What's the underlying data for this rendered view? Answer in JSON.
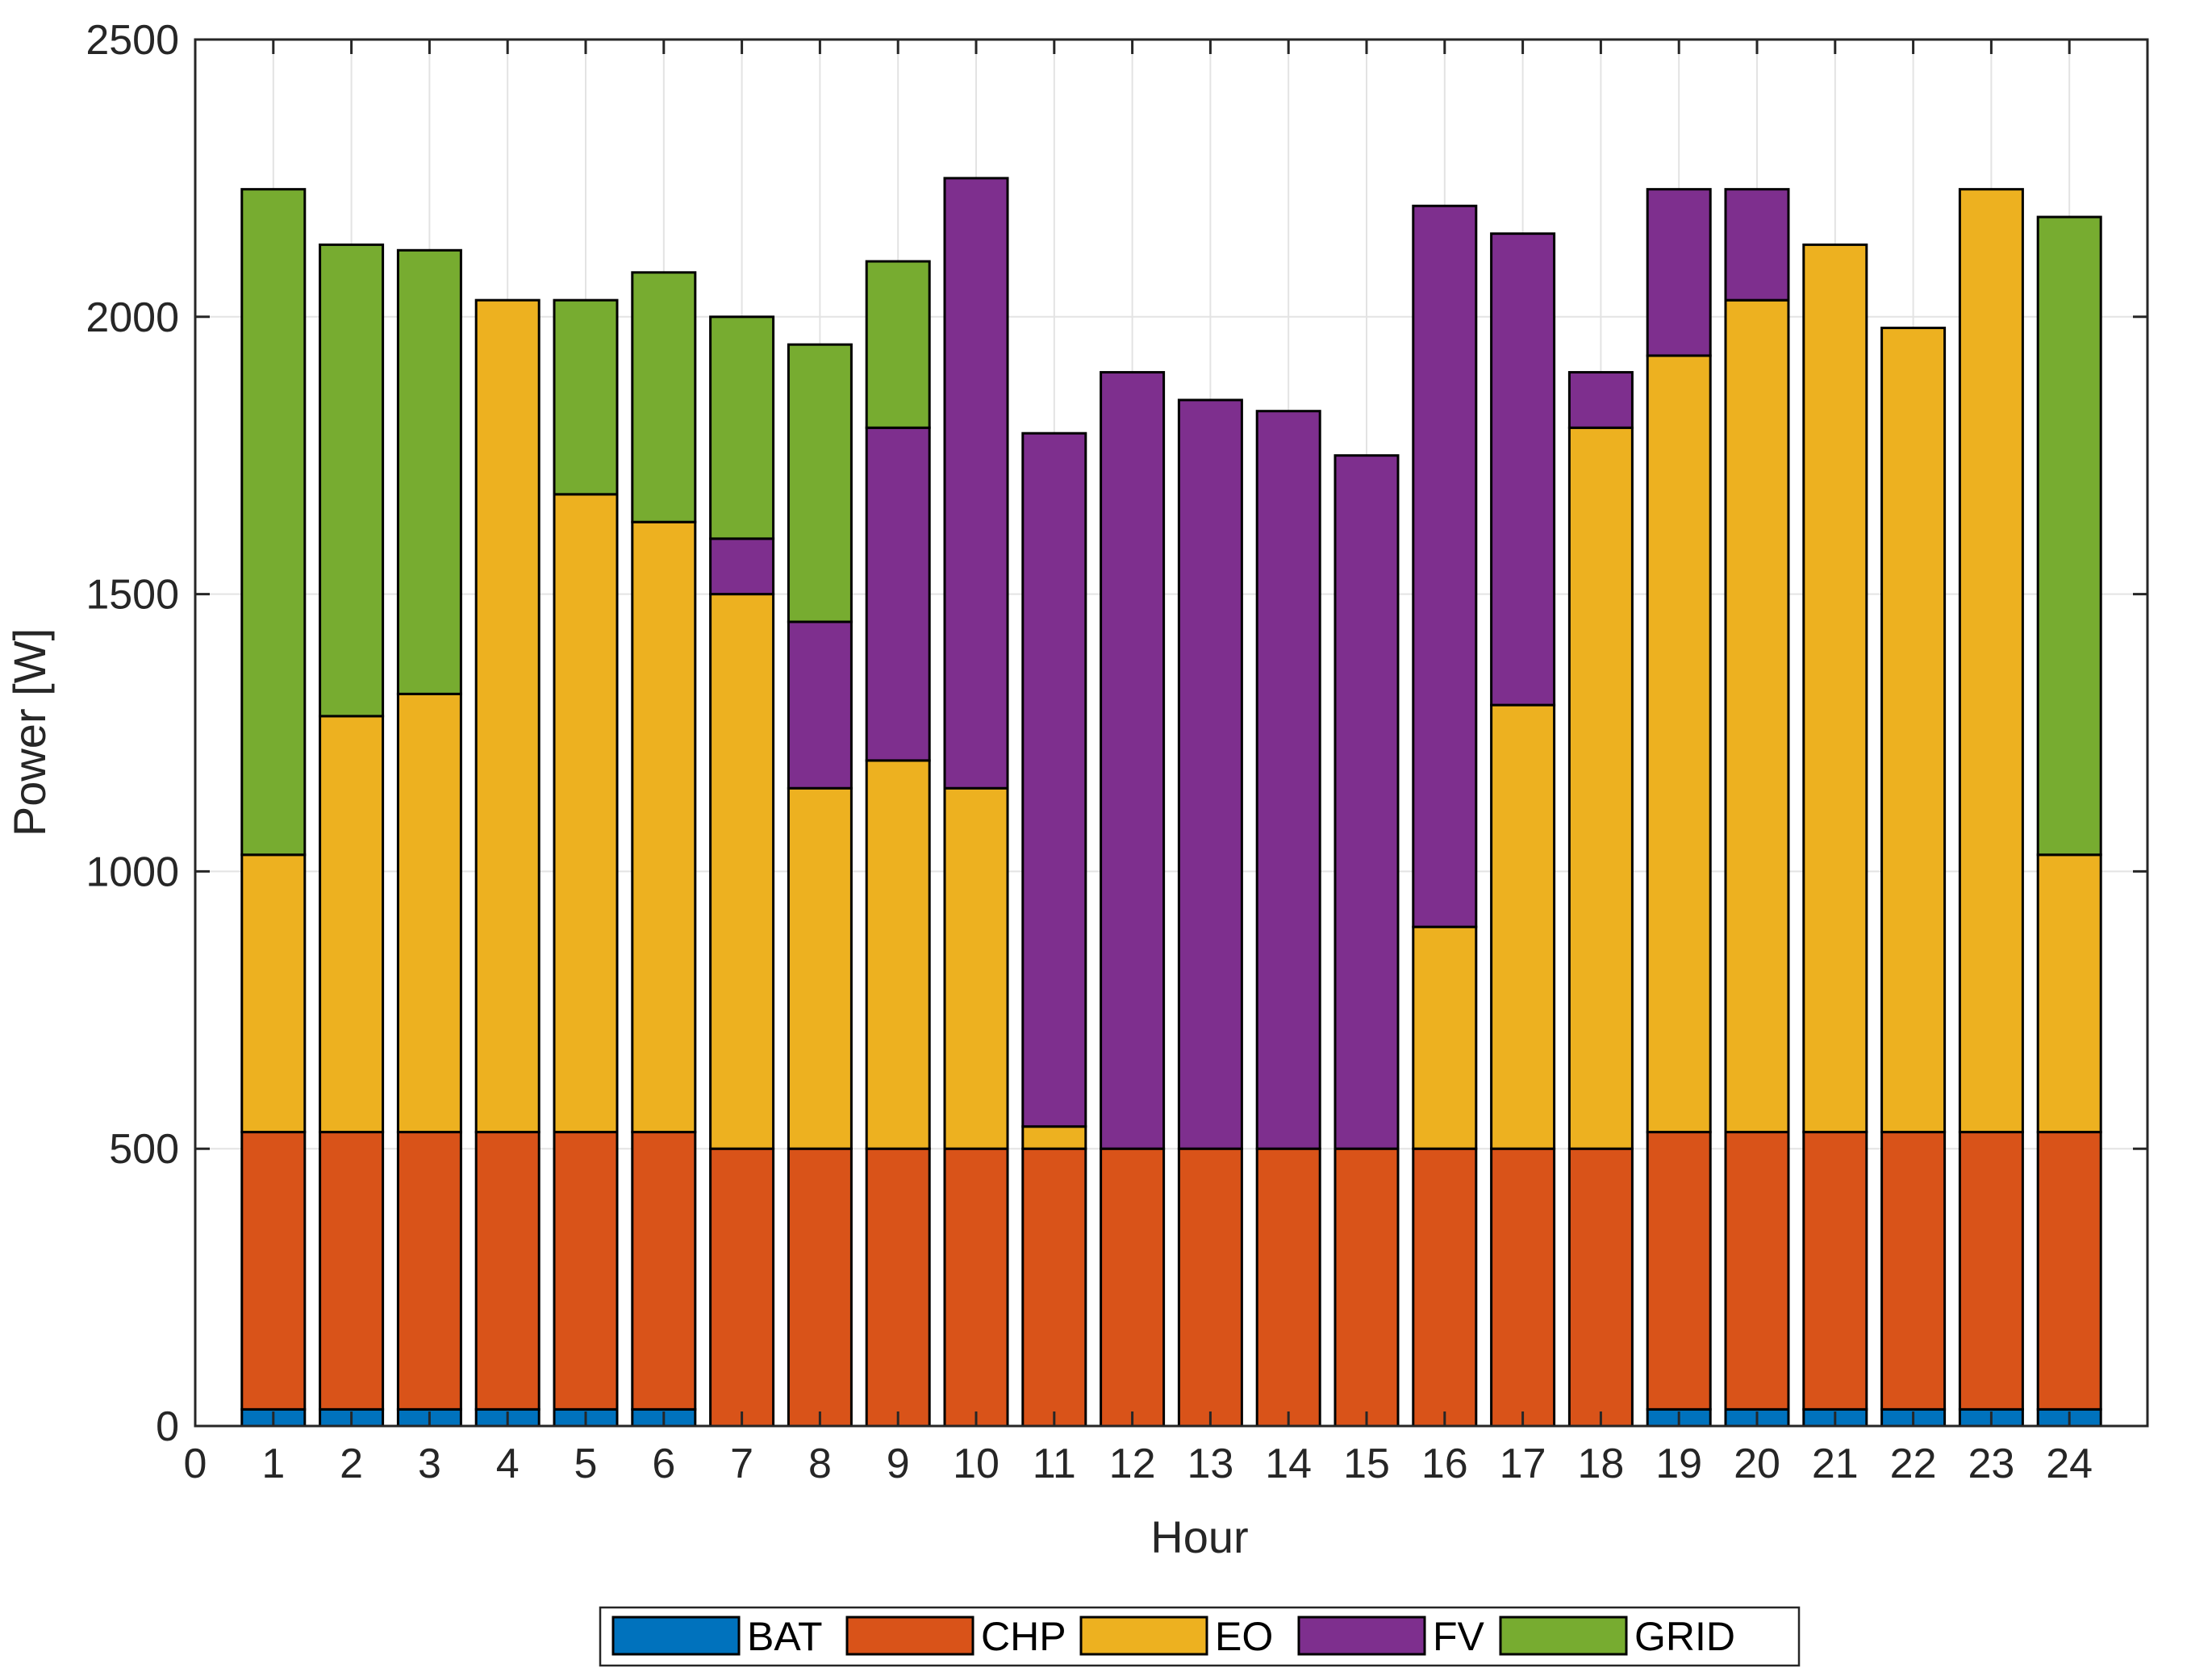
{
  "chart_data": {
    "type": "bar",
    "stacked": true,
    "title": "",
    "xlabel": "Hour",
    "ylabel": "Power [W]",
    "xlim": [
      0,
      25
    ],
    "ylim": [
      0,
      2500
    ],
    "xticks": [
      "0",
      "1",
      "2",
      "3",
      "4",
      "5",
      "6",
      "7",
      "8",
      "9",
      "10",
      "11",
      "12",
      "13",
      "14",
      "15",
      "16",
      "17",
      "18",
      "19",
      "20",
      "21",
      "22",
      "23",
      "24"
    ],
    "yticks": [
      "0",
      "500",
      "1000",
      "1500",
      "2000",
      "2500"
    ],
    "grid": true,
    "legend_position": "bottom-outside-horizontal",
    "categories": [
      "1",
      "2",
      "3",
      "4",
      "5",
      "6",
      "7",
      "8",
      "9",
      "10",
      "11",
      "12",
      "13",
      "14",
      "15",
      "16",
      "17",
      "18",
      "19",
      "20",
      "21",
      "22",
      "23",
      "24"
    ],
    "series": [
      {
        "name": "BAT",
        "color": "#0072BD",
        "values": [
          30,
          30,
          30,
          30,
          30,
          30,
          0,
          0,
          0,
          0,
          0,
          0,
          0,
          0,
          0,
          0,
          0,
          0,
          30,
          30,
          30,
          30,
          30,
          30
        ]
      },
      {
        "name": "CHP",
        "color": "#D95319",
        "values": [
          500,
          500,
          500,
          500,
          500,
          500,
          500,
          500,
          500,
          500,
          500,
          500,
          500,
          500,
          500,
          500,
          500,
          500,
          500,
          500,
          500,
          500,
          500,
          500
        ]
      },
      {
        "name": "EO",
        "color": "#EDB120",
        "values": [
          500,
          750,
          790,
          1500,
          1150,
          1100,
          1000,
          650,
          700,
          650,
          40,
          0,
          0,
          0,
          0,
          400,
          800,
          1300,
          1400,
          1500,
          1600,
          1450,
          1700,
          500
        ]
      },
      {
        "name": "FV",
        "color": "#7E2F8E",
        "values": [
          0,
          0,
          0,
          0,
          0,
          0,
          100,
          300,
          600,
          1100,
          1250,
          1400,
          1350,
          1330,
          1250,
          1300,
          850,
          100,
          300,
          200,
          0,
          0,
          0,
          0
        ]
      },
      {
        "name": "GRID",
        "color": "#77AC30",
        "values": [
          1200,
          850,
          800,
          0,
          350,
          450,
          400,
          500,
          300,
          0,
          0,
          0,
          0,
          0,
          0,
          0,
          0,
          0,
          0,
          0,
          0,
          0,
          0,
          1150
        ]
      }
    ]
  }
}
